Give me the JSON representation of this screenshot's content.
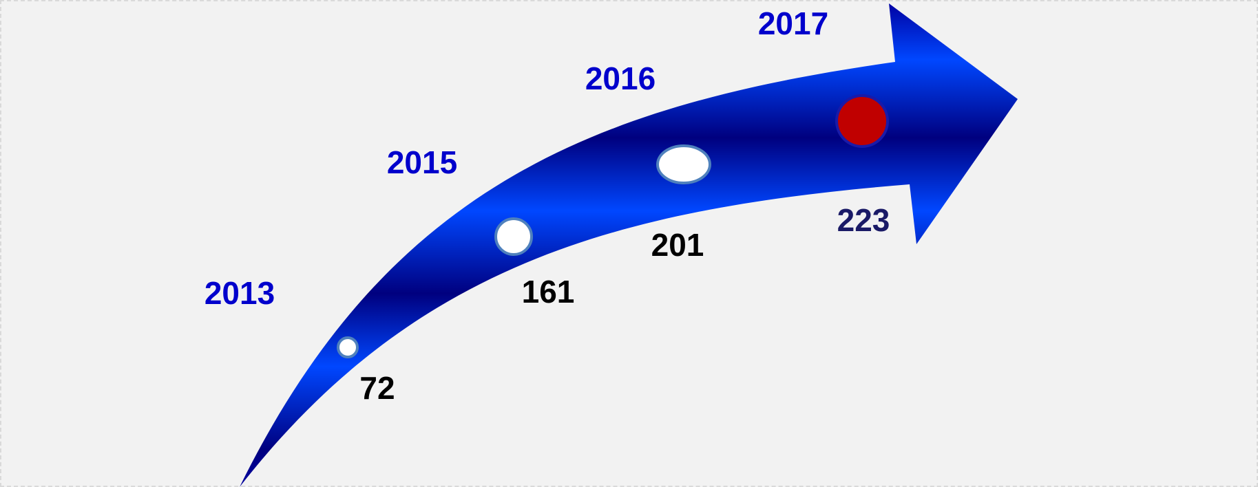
{
  "colors": {
    "background": "#f2f2f2",
    "arrow_dark": "#00007f",
    "arrow_light": "#0047ff",
    "year_text": "#0000cc",
    "value_text": "#000000",
    "highlight_marker": "#c00000",
    "marker_ring": "#4f81bd"
  },
  "milestones": [
    {
      "year": "2013",
      "value": "72",
      "highlight": false
    },
    {
      "year": "2015",
      "value": "161",
      "highlight": false
    },
    {
      "year": "2016",
      "value": "201",
      "highlight": false
    },
    {
      "year": "2017",
      "value": "223",
      "highlight": true
    }
  ]
}
